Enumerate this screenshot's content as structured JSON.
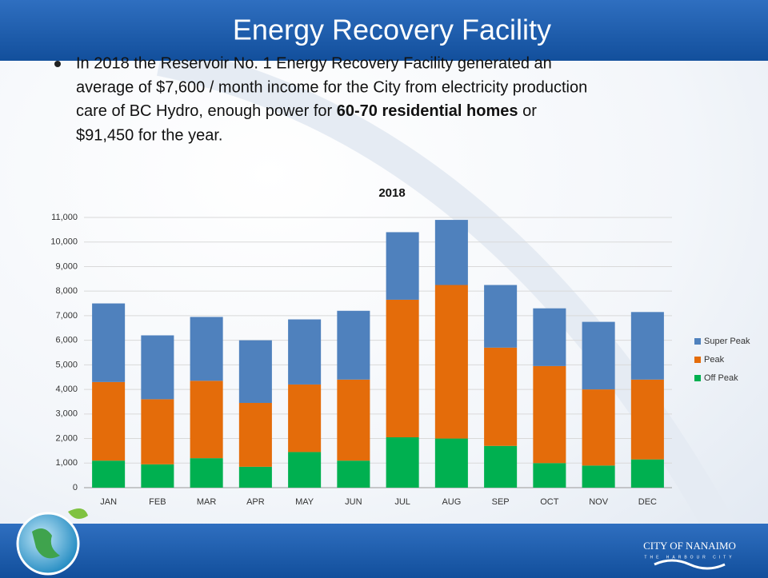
{
  "slide": {
    "title": "Energy Recovery Facility",
    "bullet": [
      "In 2018 the Reservoir No. 1 Energy Recovery Facility generated an",
      "average of $7,600 / month income for the City from electricity production",
      "care of BC Hydro, enough power for ",
      "60-70 residential homes",
      " or",
      "$91,450 for the year."
    ],
    "logo": {
      "name": "CITY OF NANAIMO",
      "tagline": "THE HARBOUR CITY"
    }
  },
  "chart_data": {
    "type": "stacked_bar",
    "title": "2018",
    "categories": [
      "JAN",
      "FEB",
      "MAR",
      "APR",
      "MAY",
      "JUN",
      "JUL",
      "AUG",
      "SEP",
      "OCT",
      "NOV",
      "DEC"
    ],
    "series": [
      {
        "name": "Off Peak",
        "color": "#00b050",
        "values": [
          1100,
          950,
          1200,
          850,
          1450,
          1100,
          2050,
          2000,
          1700,
          1000,
          900,
          1150
        ]
      },
      {
        "name": "Peak",
        "color": "#e46c0a",
        "values": [
          3200,
          2650,
          3150,
          2600,
          2750,
          3300,
          5600,
          6250,
          4000,
          3950,
          3100,
          3250
        ]
      },
      {
        "name": "Super Peak",
        "color": "#4f81bd",
        "values": [
          3200,
          2600,
          2600,
          2550,
          2650,
          2800,
          2750,
          2650,
          2550,
          2350,
          2750,
          2750
        ]
      }
    ],
    "ylim": [
      0,
      11000
    ],
    "yticks": [
      0,
      {
        "value": 1000,
        "label": "1,000"
      },
      {
        "value": 2000,
        "label": "2,000"
      },
      {
        "value": 3000,
        "label": "3,000"
      },
      {
        "value": 4000,
        "label": "4,000"
      },
      {
        "value": 5000,
        "label": "5,000"
      },
      {
        "value": 6000,
        "label": "6,000"
      },
      {
        "value": 7000,
        "label": "7,000"
      },
      {
        "value": 8000,
        "label": "8,000"
      },
      {
        "value": 9000,
        "label": "9,000"
      },
      {
        "value": 10000,
        "label": "10,000"
      },
      {
        "value": 11000,
        "label": "11,000"
      }
    ],
    "grid": true,
    "legend": "right"
  }
}
